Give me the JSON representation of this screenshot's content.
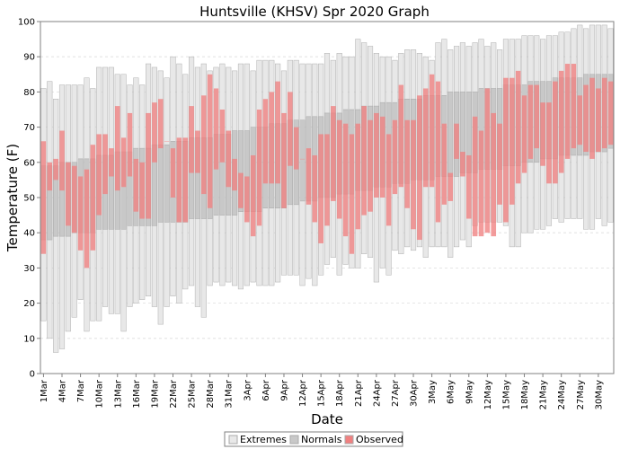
{
  "chart_data": {
    "type": "bar",
    "title": "Huntsville (KHSV) Spr 2020 Graph",
    "xlabel": "Date",
    "ylabel": "Temperature (F)",
    "ylim": [
      0,
      100
    ],
    "yticks": [
      0,
      10,
      20,
      30,
      40,
      50,
      60,
      70,
      80,
      90,
      100
    ],
    "grid": true,
    "legend_position": "bottom",
    "x_tick_labels": [
      "1Mar",
      "4Mar",
      "7Mar",
      "10Mar",
      "13Mar",
      "16Mar",
      "19Mar",
      "22Mar",
      "25Mar",
      "28Mar",
      "31Mar",
      "3Apr",
      "6Apr",
      "9Apr",
      "12Apr",
      "15Apr",
      "18Apr",
      "21Apr",
      "24Apr",
      "27Apr",
      "30Apr",
      "3May",
      "6May",
      "9May",
      "12May",
      "15May",
      "18May",
      "21May",
      "24May",
      "27May",
      "30May"
    ],
    "x_tick_index": [
      0,
      3,
      6,
      9,
      12,
      15,
      18,
      21,
      24,
      27,
      30,
      33,
      36,
      39,
      42,
      45,
      48,
      51,
      54,
      57,
      60,
      63,
      66,
      69,
      72,
      75,
      78,
      81,
      84,
      87,
      90
    ],
    "colors": {
      "extremes": "#e8e8e8",
      "normals": "#c8c8c8",
      "observed": "#f08080",
      "grid": "#dddddd"
    },
    "series": [
      {
        "name": "Extremes",
        "kind": "range",
        "low": [
          15,
          10,
          6,
          7,
          12,
          16,
          21,
          12,
          15,
          15,
          19,
          17,
          17,
          12,
          19,
          20,
          21,
          22,
          19,
          14,
          19,
          22,
          20,
          24,
          25,
          19,
          16,
          25,
          26,
          25,
          26,
          25,
          24,
          25,
          26,
          25,
          25,
          25,
          26,
          28,
          28,
          28,
          25,
          27,
          25,
          28,
          31,
          33,
          28,
          31,
          30,
          30,
          34,
          33,
          26,
          30,
          28,
          35,
          34,
          36,
          35,
          36,
          33,
          36,
          36,
          36,
          33,
          36,
          38,
          36,
          42,
          43,
          43,
          43,
          43,
          42,
          36,
          36,
          40,
          40,
          41,
          41,
          42,
          44,
          43,
          44,
          44,
          44,
          41,
          41,
          44,
          42,
          43
        ],
        "high": [
          81,
          83,
          78,
          82,
          82,
          82,
          82,
          84,
          81,
          87,
          87,
          87,
          85,
          85,
          82,
          84,
          82,
          88,
          87,
          86,
          84,
          90,
          88,
          85,
          90,
          87,
          88,
          86,
          87,
          88,
          87,
          86,
          88,
          88,
          86,
          89,
          89,
          89,
          88,
          86,
          89,
          89,
          88,
          88,
          88,
          88,
          91,
          89,
          91,
          90,
          90,
          95,
          94,
          93,
          91,
          90,
          90,
          89,
          91,
          92,
          92,
          91,
          90,
          89,
          94,
          95,
          92,
          93,
          94,
          93,
          94,
          95,
          93,
          94,
          92,
          95,
          95,
          95,
          96,
          96,
          96,
          95,
          96,
          96,
          97,
          97,
          98,
          99,
          98,
          99,
          99,
          99,
          98
        ]
      },
      {
        "name": "Normals",
        "kind": "range",
        "low": [
          38,
          38,
          39,
          39,
          39,
          40,
          40,
          40,
          40,
          41,
          41,
          41,
          41,
          41,
          42,
          42,
          42,
          42,
          42,
          43,
          43,
          43,
          43,
          43,
          44,
          44,
          44,
          44,
          45,
          45,
          45,
          45,
          46,
          46,
          46,
          46,
          47,
          47,
          47,
          47,
          48,
          48,
          49,
          49,
          49,
          50,
          50,
          50,
          51,
          51,
          51,
          52,
          52,
          52,
          53,
          53,
          53,
          54,
          54,
          54,
          55,
          55,
          55,
          55,
          56,
          56,
          56,
          56,
          57,
          57,
          57,
          58,
          58,
          58,
          58,
          59,
          59,
          59,
          60,
          60,
          60,
          61,
          61,
          61,
          62,
          62,
          62,
          62,
          62,
          63,
          63,
          63,
          64
        ],
        "high": [
          59,
          59,
          59,
          60,
          60,
          60,
          61,
          61,
          61,
          62,
          62,
          62,
          63,
          63,
          63,
          64,
          64,
          64,
          65,
          65,
          65,
          66,
          66,
          66,
          67,
          67,
          67,
          67,
          68,
          68,
          68,
          69,
          69,
          69,
          70,
          70,
          70,
          71,
          71,
          71,
          72,
          72,
          72,
          73,
          73,
          73,
          74,
          74,
          74,
          75,
          75,
          75,
          76,
          76,
          76,
          77,
          77,
          77,
          78,
          78,
          78,
          78,
          79,
          79,
          79,
          79,
          80,
          80,
          80,
          80,
          80,
          81,
          81,
          81,
          81,
          82,
          82,
          82,
          82,
          83,
          83,
          83,
          83,
          84,
          84,
          84,
          84,
          84,
          85,
          85,
          85,
          85,
          85
        ]
      },
      {
        "name": "Observed",
        "kind": "range",
        "low": [
          34,
          52,
          55,
          52,
          42,
          40,
          35,
          30,
          35,
          45,
          51,
          56,
          52,
          53,
          56,
          46,
          44,
          44,
          60,
          64,
          66,
          50,
          43,
          43,
          57,
          57,
          51,
          47,
          58,
          60,
          53,
          52,
          47,
          43,
          39,
          42,
          54,
          54,
          54,
          47,
          59,
          58,
          61,
          48,
          43,
          37,
          42,
          49,
          44,
          39,
          34,
          41,
          45,
          46,
          50,
          50,
          42,
          51,
          53,
          47,
          41,
          38,
          53,
          53,
          43,
          48,
          49,
          61,
          56,
          44,
          39,
          39,
          40,
          39,
          48,
          43,
          48,
          54,
          57,
          61,
          64,
          59,
          54,
          54,
          57,
          61,
          64,
          65,
          63,
          61,
          63,
          64,
          65
        ],
        "high": [
          66,
          60,
          61,
          69,
          60,
          59,
          56,
          58,
          65,
          68,
          68,
          64,
          76,
          67,
          74,
          61,
          60,
          74,
          77,
          78,
          66,
          64,
          67,
          67,
          76,
          69,
          79,
          85,
          81,
          75,
          69,
          61,
          57,
          56,
          62,
          75,
          78,
          80,
          83,
          74,
          80,
          70,
          61,
          64,
          62,
          68,
          68,
          76,
          72,
          71,
          68,
          71,
          76,
          72,
          74,
          73,
          68,
          72,
          82,
          72,
          72,
          79,
          81,
          85,
          83,
          71,
          57,
          71,
          63,
          62,
          73,
          69,
          81,
          74,
          71,
          84,
          84,
          86,
          79,
          82,
          82,
          77,
          77,
          83,
          86,
          88,
          88,
          79,
          82,
          84,
          81,
          84,
          83
        ]
      }
    ]
  }
}
